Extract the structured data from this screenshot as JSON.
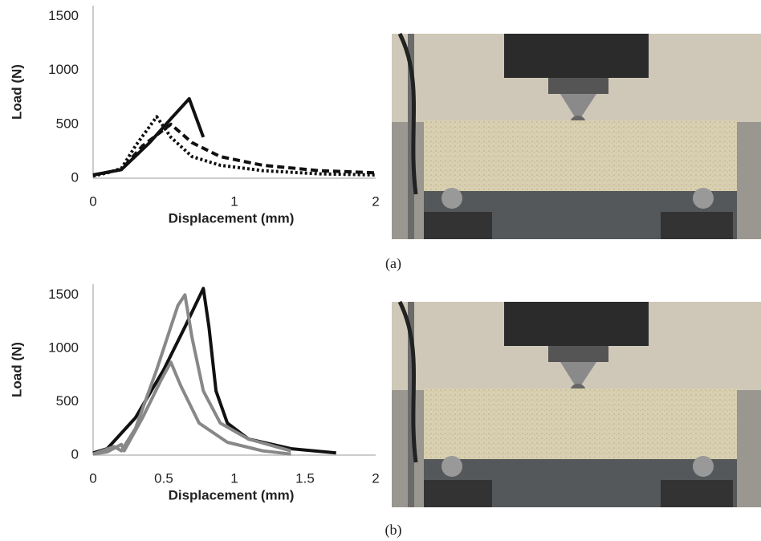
{
  "chart_data": [
    {
      "type": "line",
      "caption": "(a)",
      "x_label": "Displacement (mm)",
      "y_label": "Load (N)",
      "xlim": [
        0,
        2
      ],
      "xticks": [
        0,
        1,
        2
      ],
      "ylim": [
        0,
        1600
      ],
      "yticks": [
        0,
        500,
        1000,
        1500
      ],
      "grid": false,
      "series": [
        {
          "color": "#111111",
          "line_style": "solid",
          "x": [
            0,
            0.2,
            0.4,
            0.55,
            0.68,
            0.78
          ],
          "values": [
            30,
            80,
            330,
            550,
            737,
            380
          ]
        },
        {
          "color": "#111111",
          "line_style": "dotted",
          "x": [
            0,
            0.1,
            0.2,
            0.3,
            0.45,
            0.55,
            0.7,
            0.9,
            1.2,
            1.6,
            2
          ],
          "values": [
            20,
            50,
            90,
            300,
            570,
            380,
            200,
            120,
            70,
            40,
            30
          ]
        },
        {
          "color": "#111111",
          "line_style": "dashed",
          "x": [
            0,
            0.2,
            0.35,
            0.55,
            0.7,
            0.9,
            1.2,
            1.6,
            2
          ],
          "values": [
            30,
            80,
            300,
            500,
            330,
            200,
            120,
            70,
            50
          ]
        }
      ]
    },
    {
      "type": "line",
      "caption": "(b)",
      "x_label": "Displacement (mm)",
      "y_label": "Load (N)",
      "xlim": [
        0,
        2
      ],
      "xticks": [
        0,
        0.5,
        1,
        1.5,
        2
      ],
      "ylim": [
        0,
        1600
      ],
      "yticks": [
        0,
        500,
        1000,
        1500
      ],
      "grid": false,
      "series": [
        {
          "color": "#111111",
          "line_style": "solid",
          "x": [
            0,
            0.1,
            0.3,
            0.5,
            0.65,
            0.78,
            0.82,
            0.87,
            0.95,
            1.1,
            1.4,
            1.72
          ],
          "values": [
            20,
            60,
            350,
            800,
            1200,
            1560,
            1200,
            600,
            300,
            150,
            60,
            20
          ]
        },
        {
          "color": "#888888",
          "line_style": "solid",
          "x": [
            0,
            0.15,
            0.2,
            0.3,
            0.45,
            0.6,
            0.65,
            0.7,
            0.78,
            0.9,
            1.1,
            1.4
          ],
          "values": [
            10,
            80,
            40,
            250,
            800,
            1400,
            1500,
            1100,
            600,
            300,
            150,
            40
          ]
        },
        {
          "color": "#888888",
          "line_style": "solid",
          "x": [
            0,
            0.1,
            0.2,
            0.22,
            0.35,
            0.48,
            0.55,
            0.62,
            0.75,
            0.95,
            1.2,
            1.4
          ],
          "values": [
            10,
            30,
            100,
            40,
            350,
            700,
            870,
            650,
            300,
            120,
            40,
            10
          ]
        }
      ]
    }
  ]
}
